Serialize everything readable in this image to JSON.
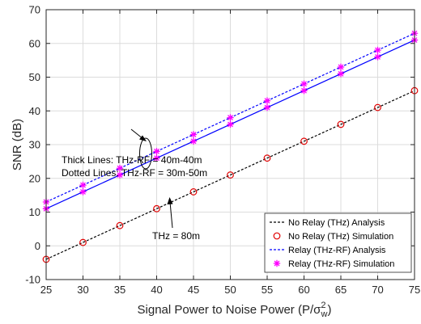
{
  "chart_data": {
    "type": "line",
    "xlabel": "Signal Power to Noise Power (P/σ",
    "xlabel_sub": "w",
    "xlabel_sup": "2",
    "xlabel_tail": ")",
    "ylabel": "SNR (dB)",
    "xlim": [
      25,
      75
    ],
    "ylim": [
      -10,
      70
    ],
    "xticks": [
      25,
      30,
      35,
      40,
      45,
      50,
      55,
      60,
      65,
      70,
      75
    ],
    "yticks": [
      -10,
      0,
      10,
      20,
      30,
      40,
      50,
      60,
      70
    ],
    "grid": true,
    "legend_position": "bottom-right",
    "x": [
      25,
      30,
      35,
      40,
      45,
      50,
      55,
      60,
      65,
      70,
      75
    ],
    "series": [
      {
        "name": "No Relay (THz) Analysis",
        "group": "THz = 80m",
        "style": "dashed-line",
        "color": "#000000",
        "values": [
          -4,
          1,
          6,
          11,
          16,
          21,
          26,
          31,
          36,
          41,
          46
        ]
      },
      {
        "name": "No Relay (THz) Simulation",
        "group": "THz = 80m",
        "style": "circle-markers",
        "color": "#e00000",
        "values": [
          -4,
          1,
          6,
          11,
          16,
          21,
          26,
          31,
          36,
          41,
          46
        ]
      },
      {
        "name": "Relay (THz-RF) Analysis",
        "group": "THz-RF = 40m-40m",
        "style": "solid-line",
        "color": "#0000ff",
        "values": [
          11,
          16,
          21,
          26,
          31,
          36,
          41,
          46,
          51,
          56,
          61
        ]
      },
      {
        "name": "Relay (THz-RF) Analysis",
        "group": "THz-RF = 30m-50m",
        "style": "dashed-line",
        "color": "#0000ff",
        "values": [
          13,
          18,
          23,
          28,
          33,
          38,
          43,
          48,
          53,
          58,
          63
        ]
      },
      {
        "name": "Relay (THz-RF) Simulation",
        "group": "THz-RF = 40m-40m",
        "style": "star-markers",
        "color": "#ff00ff",
        "values": [
          11,
          16,
          21,
          26,
          31,
          36,
          41,
          46,
          51,
          56,
          61
        ]
      },
      {
        "name": "Relay (THz-RF) Simulation",
        "group": "THz-RF = 30m-50m",
        "style": "star-markers",
        "color": "#ff00ff",
        "values": [
          13,
          18,
          23,
          28,
          33,
          38,
          43,
          48,
          53,
          58,
          63
        ]
      }
    ],
    "legend": [
      {
        "label": "No Relay (THz) Analysis",
        "style": "dashed-line",
        "color": "#000000"
      },
      {
        "label": "No Relay (THz) Simulation",
        "style": "circle-marker",
        "color": "#e00000"
      },
      {
        "label": "Relay (THz-RF) Analysis",
        "style": "dashed-line",
        "color": "#0000ff"
      },
      {
        "label": "Relay (THz-RF) Simulation",
        "style": "star-marker",
        "color": "#ff00ff"
      }
    ],
    "annotations": [
      {
        "text": "Thick Lines:   THz-RF =  40m-40m"
      },
      {
        "text": "Dotted Lines: THz-RF =  30m-50m"
      },
      {
        "text": "THz = 80m"
      }
    ]
  }
}
